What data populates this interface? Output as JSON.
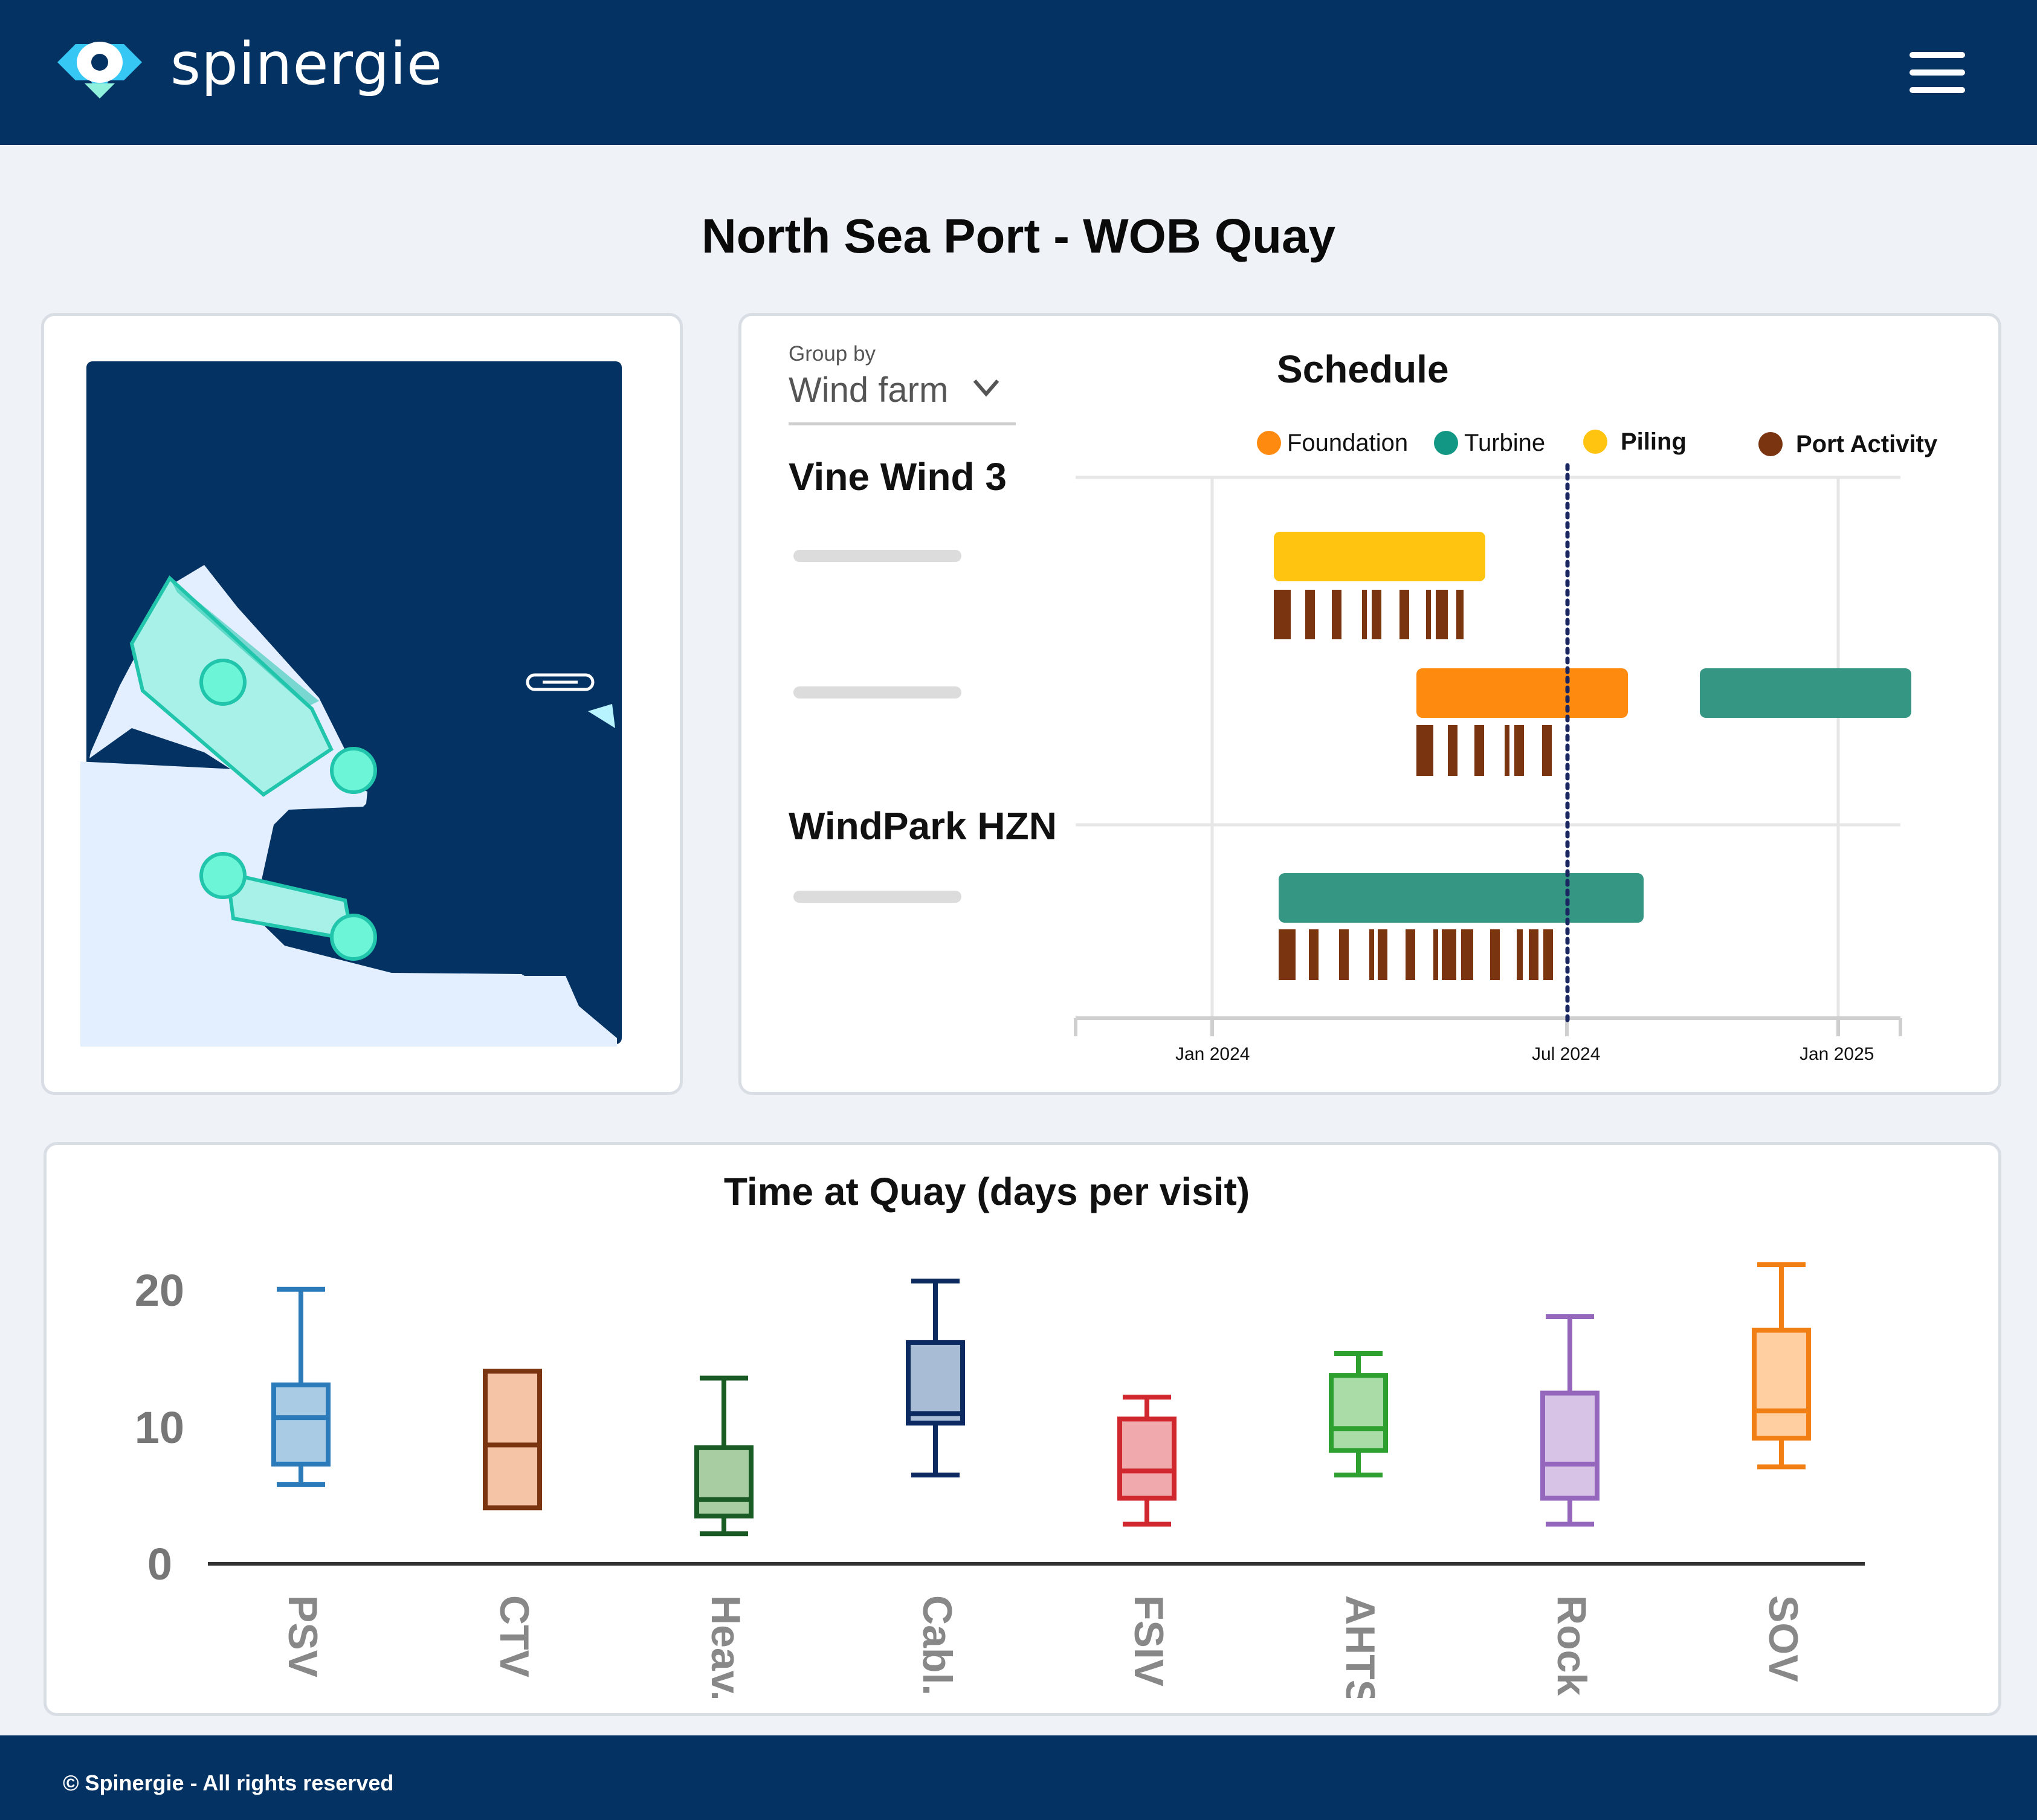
{
  "header": {
    "logo_text": "spinergie",
    "logo_icon": "map-pin-eye-icon",
    "menu_icon": "hamburger-menu-icon",
    "bg_color": "#043263"
  },
  "page": {
    "title": "North Sea Port - WOB Quay"
  },
  "map": {
    "description_icons": [
      "quay-area",
      "berth-marker",
      "vessel-icon",
      "direction-arrow-icon"
    ],
    "water_color": "#043263",
    "land_color": "#e3efff",
    "berth_color": "#a8f1e9",
    "marker_color": "#6cf5d6"
  },
  "schedule": {
    "group_by_label": "Group by",
    "group_by_value": "Wind farm",
    "title": "Schedule",
    "legend": [
      {
        "label": "Foundation",
        "color": "#fe8a10"
      },
      {
        "label": "Turbine",
        "color": "#119784"
      },
      {
        "label": "Piling",
        "color": "#fec410"
      },
      {
        "label": "Port Activity",
        "color": "#7b3410"
      }
    ],
    "groups": [
      {
        "name": "Vine Wind 3"
      },
      {
        "name": "WindPark HZN"
      }
    ],
    "x_ticks": [
      "Jan 2024",
      "Jul 2024",
      "Jan 2025"
    ],
    "today_marker": "Jul 2024",
    "colors": {
      "today_line": "#1a2660",
      "grid": "#e6e6e6"
    }
  },
  "chart_data": {
    "type": "box",
    "title": "Time at Quay (days per visit)",
    "xlabel": "",
    "ylabel": "",
    "ylim": [
      0,
      22
    ],
    "yticks": [
      0,
      10,
      20
    ],
    "categories": [
      "PSV",
      "CTV",
      "Heav...",
      "Cabl...",
      "FSIV",
      "AHTS",
      "Rock...",
      "SOV"
    ],
    "series": [
      {
        "category": "PSV",
        "color": "#2b7bba",
        "fill": "#a9cbe4",
        "min": 5.8,
        "q1": 7.3,
        "median": 10.7,
        "q3": 13.1,
        "max": 20.1
      },
      {
        "category": "CTV",
        "color": "#7b3410",
        "fill": "#f5c4a7",
        "min": 4.1,
        "q1": 4.1,
        "median": 8.7,
        "q3": 14.1,
        "max": 14.1
      },
      {
        "category": "Heav...",
        "color": "#1a5a25",
        "fill": "#a8cda3",
        "min": 2.2,
        "q1": 3.5,
        "median": 4.7,
        "q3": 8.5,
        "max": 13.6
      },
      {
        "category": "Cabl...",
        "color": "#0c2a60",
        "fill": "#a8bcd6",
        "min": 6.5,
        "q1": 10.3,
        "median": 11.0,
        "q3": 16.2,
        "max": 20.7
      },
      {
        "category": "FSIV",
        "color": "#d0282e",
        "fill": "#f0a9ac",
        "min": 2.9,
        "q1": 4.8,
        "median": 6.8,
        "q3": 10.6,
        "max": 12.2
      },
      {
        "category": "AHTS",
        "color": "#2ea02f",
        "fill": "#a9dca6",
        "min": 6.5,
        "q1": 8.3,
        "median": 9.9,
        "q3": 13.8,
        "max": 15.4
      },
      {
        "category": "Rock...",
        "color": "#9467bd",
        "fill": "#d6c3e5",
        "min": 2.9,
        "q1": 4.8,
        "median": 7.3,
        "q3": 12.5,
        "max": 18.1
      },
      {
        "category": "SOV",
        "color": "#f27f13",
        "fill": "#ffcfa2",
        "min": 7.1,
        "q1": 9.2,
        "median": 11.2,
        "q3": 17.1,
        "max": 21.9
      }
    ]
  },
  "footer": {
    "text": "© Spinergie - All rights reserved"
  }
}
